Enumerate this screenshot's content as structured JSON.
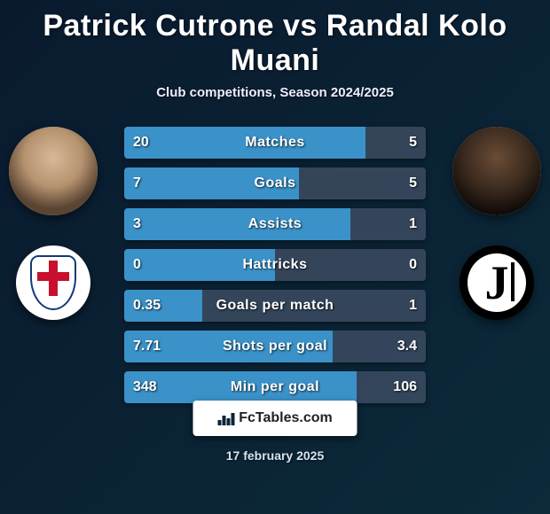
{
  "title": "Patrick Cutrone vs Randal Kolo Muani",
  "subtitle": "Club competitions, Season 2024/2025",
  "date": "17 february 2025",
  "brand": "FcTables.com",
  "colors": {
    "bar_left": "#3a92c9",
    "bar_right": "#3a4a60",
    "background_from": "#0a1a2e",
    "background_to": "#0b2a3a",
    "text": "#ffffff"
  },
  "players": {
    "left": {
      "name": "Patrick Cutrone",
      "club": "Como"
    },
    "right": {
      "name": "Randal Kolo Muani",
      "club": "Juventus"
    }
  },
  "stats": [
    {
      "label": "Matches",
      "left_text": "20",
      "right_text": "5",
      "left_pct": 80,
      "right_pct": 20
    },
    {
      "label": "Goals",
      "left_text": "7",
      "right_text": "5",
      "left_pct": 58,
      "right_pct": 42
    },
    {
      "label": "Assists",
      "left_text": "3",
      "right_text": "1",
      "left_pct": 75,
      "right_pct": 25
    },
    {
      "label": "Hattricks",
      "left_text": "0",
      "right_text": "0",
      "left_pct": 50,
      "right_pct": 50
    },
    {
      "label": "Goals per match",
      "left_text": "0.35",
      "right_text": "1",
      "left_pct": 26,
      "right_pct": 74
    },
    {
      "label": "Shots per goal",
      "left_text": "7.71",
      "right_text": "3.4",
      "left_pct": 69,
      "right_pct": 31
    },
    {
      "label": "Min per goal",
      "left_text": "348",
      "right_text": "106",
      "left_pct": 77,
      "right_pct": 23
    }
  ]
}
